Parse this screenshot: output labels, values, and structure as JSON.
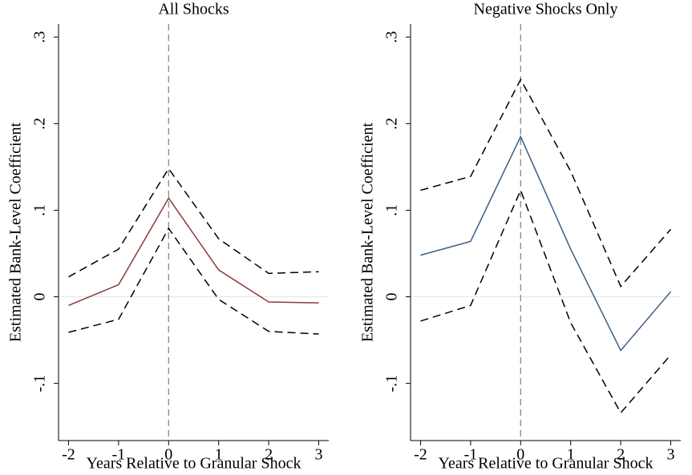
{
  "chart_data": [
    {
      "type": "line",
      "title": "All Shocks",
      "xlabel": "Years Relative to Granular Shock",
      "ylabel": "Estimated Bank-Level Coefficient",
      "x": [
        -2,
        -1,
        0,
        1,
        2,
        3
      ],
      "series": [
        {
          "color": "#8b3a3a",
          "dashed": false,
          "values": [
            -0.01,
            0.014,
            0.114,
            0.031,
            -0.006,
            -0.007
          ]
        },
        {
          "color": "#000000",
          "dashed": true,
          "values": [
            0.023,
            0.055,
            0.148,
            0.067,
            0.027,
            0.029
          ]
        },
        {
          "color": "#000000",
          "dashed": true,
          "values": [
            -0.041,
            -0.026,
            0.079,
            -0.003,
            -0.04,
            -0.043
          ]
        }
      ],
      "xlim": [
        -2.2,
        3.2
      ],
      "xticks": [
        -2,
        -1,
        0,
        1,
        2,
        3
      ],
      "ylim": [
        -0.166,
        0.315
      ],
      "yticks": [
        {
          "value": -0.1,
          "label": "-.1"
        },
        0,
        {
          "value": 0.1,
          "label": ".1"
        },
        {
          "value": 0.2,
          "label": ".2"
        },
        {
          "value": 0.3,
          "label": ".3"
        }
      ],
      "vline": 0,
      "hline": 0
    },
    {
      "type": "line",
      "title": "Negative Shocks Only",
      "xlabel": "Years Relative to Granular Shock",
      "ylabel": "Estimated Bank-Level Coefficient",
      "x": [
        -2,
        -1,
        0,
        1,
        2,
        3
      ],
      "series": [
        {
          "color": "#3a5f85",
          "dashed": false,
          "values": [
            0.048,
            0.064,
            0.185,
            0.055,
            -0.062,
            0.006
          ]
        },
        {
          "color": "#000000",
          "dashed": true,
          "values": [
            0.123,
            0.139,
            0.251,
            0.145,
            0.012,
            0.078
          ]
        },
        {
          "color": "#000000",
          "dashed": true,
          "values": [
            -0.028,
            -0.01,
            0.123,
            -0.03,
            -0.134,
            -0.067
          ]
        }
      ],
      "xlim": [
        -2.2,
        3.2
      ],
      "xticks": [
        -2,
        -1,
        0,
        1,
        2,
        3
      ],
      "ylim": [
        -0.166,
        0.315
      ],
      "yticks": [
        {
          "value": -0.1,
          "label": "-.1"
        },
        0,
        {
          "value": 0.1,
          "label": ".1"
        },
        {
          "value": 0.2,
          "label": ".2"
        },
        {
          "value": 0.3,
          "label": ".3"
        }
      ],
      "vline": 0,
      "hline": 0
    }
  ]
}
